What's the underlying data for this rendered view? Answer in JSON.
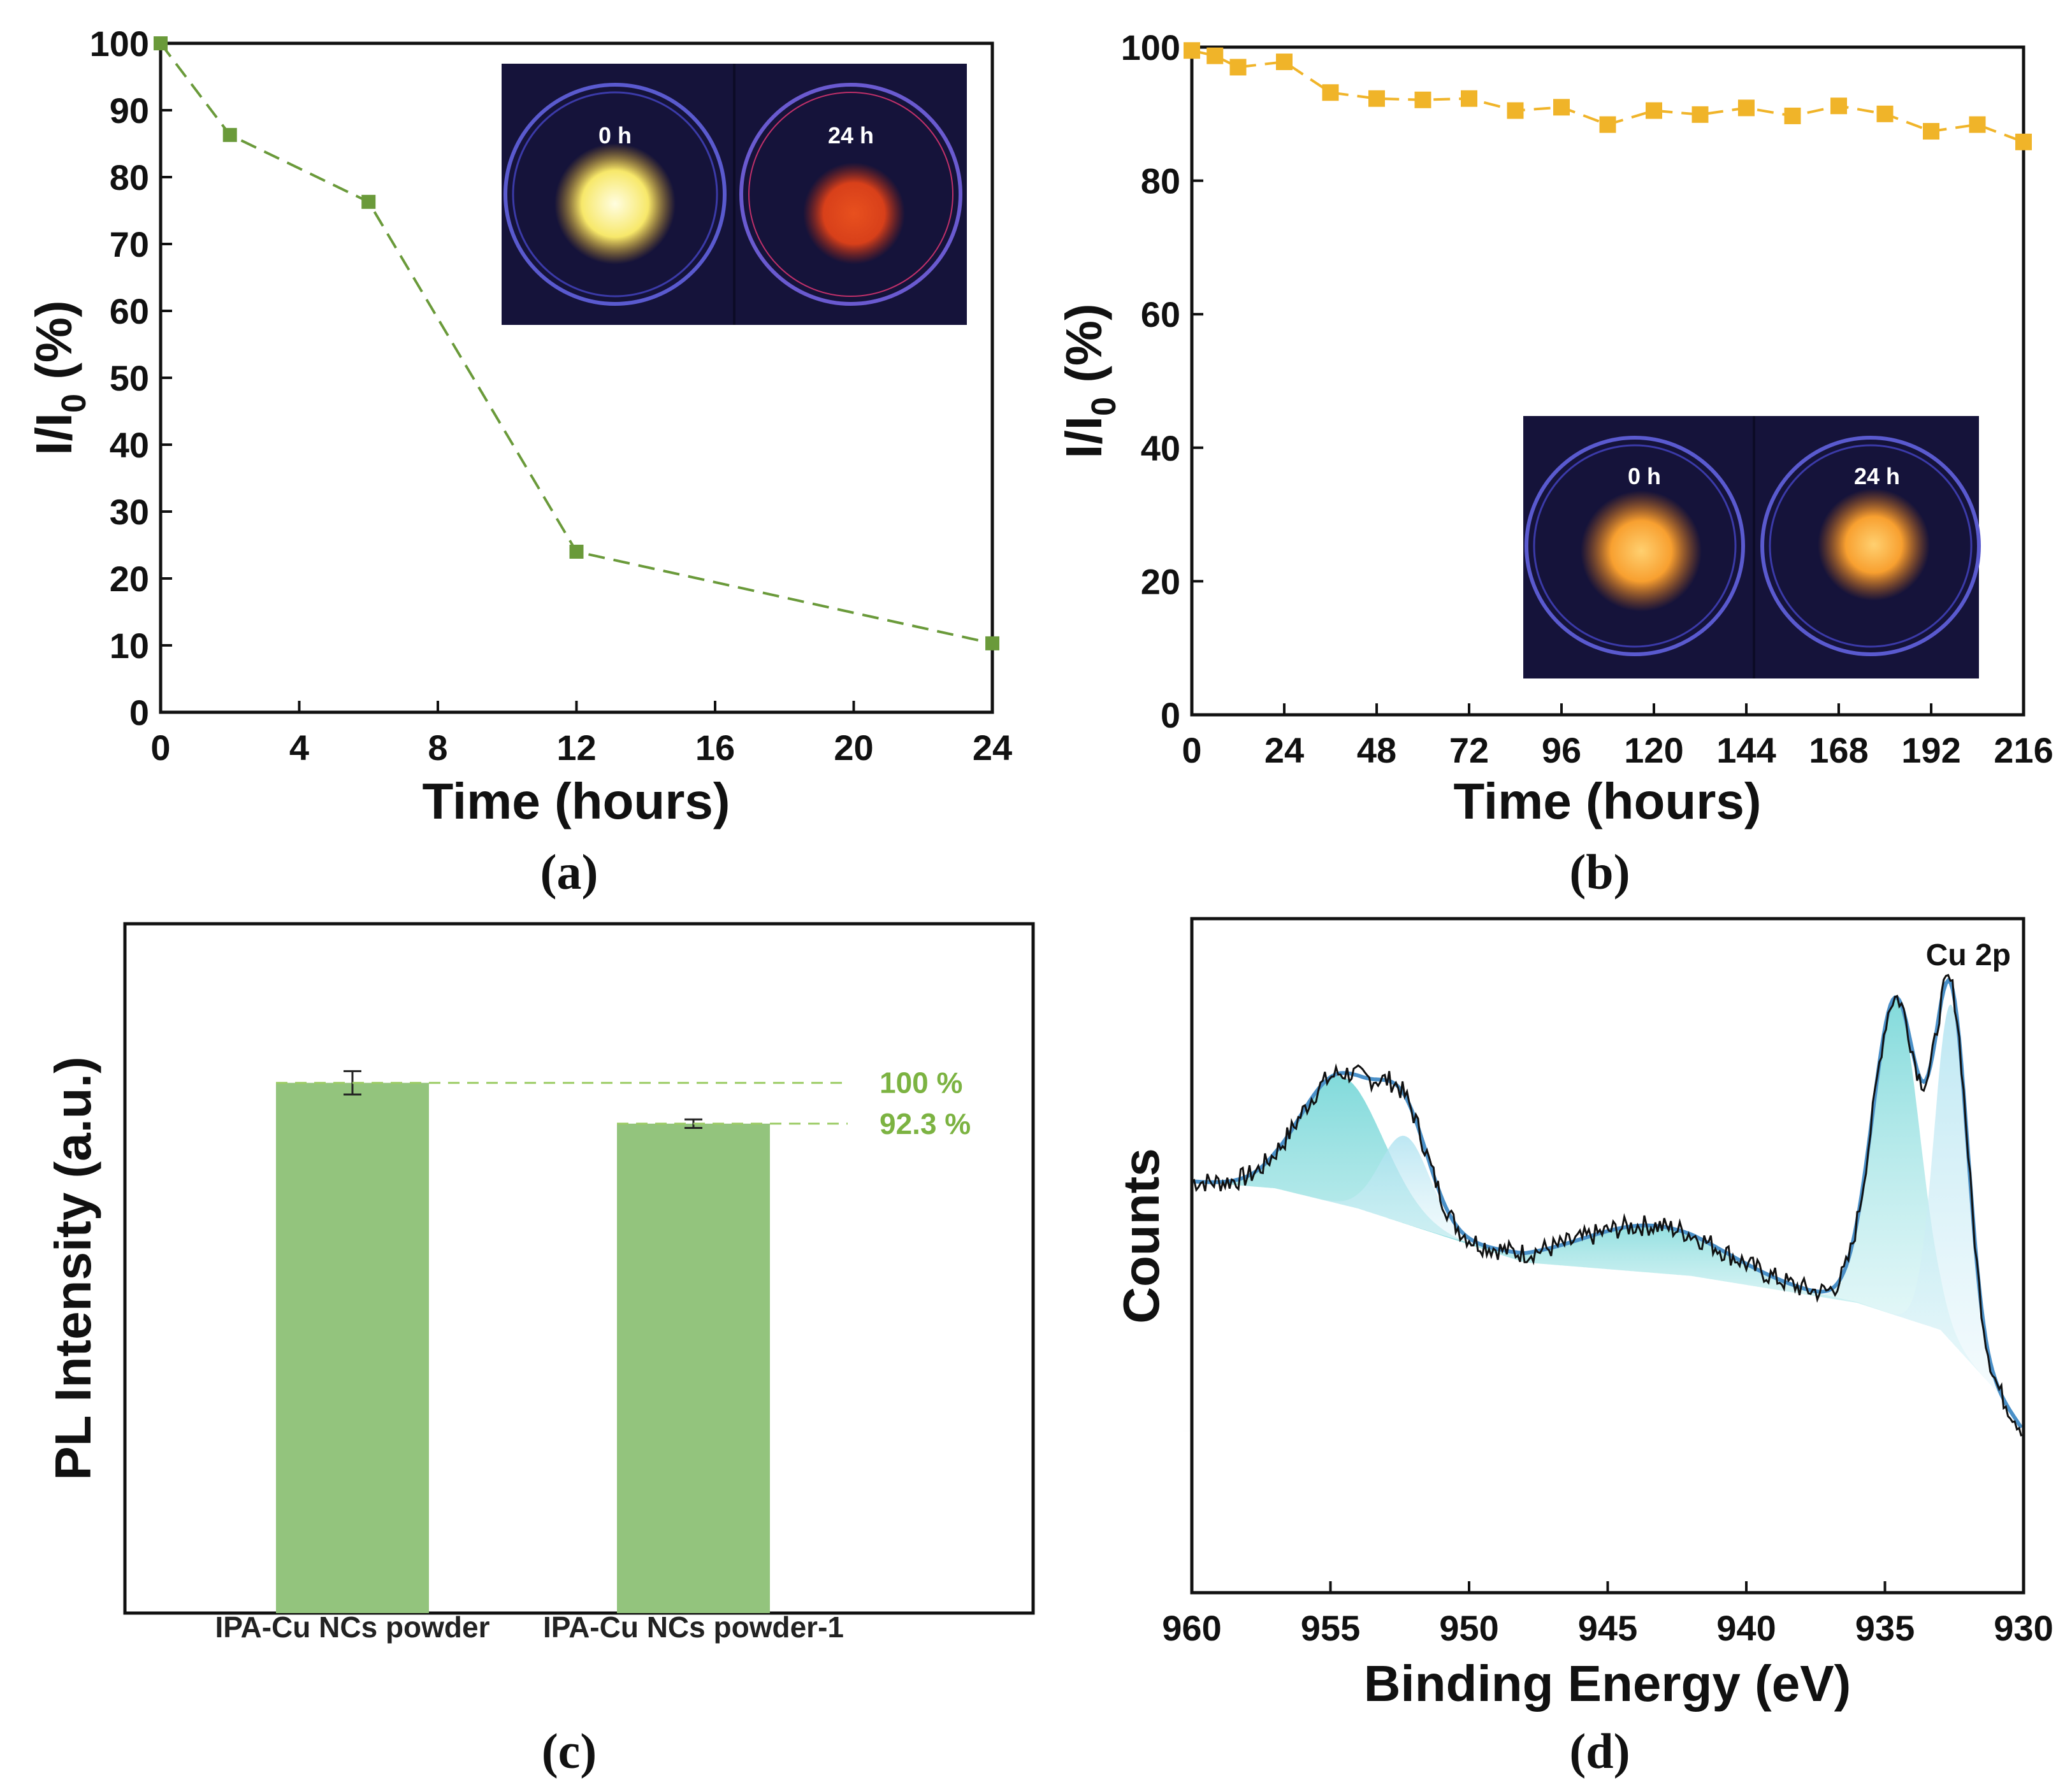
{
  "panels": [
    {
      "label": "(a)"
    },
    {
      "label": "(b)"
    },
    {
      "label": "(c)"
    },
    {
      "label": "(d)"
    }
  ],
  "colors": {
    "series_a": "#6a9a3a",
    "series_b": "#f0b429",
    "bar": "#93c47d",
    "pct": "#7cb342",
    "fit_line": "#4a90c8",
    "peak_fill": "#7fd8d8",
    "inset_bg": "#1a1840"
  },
  "chart_data": [
    {
      "type": "line",
      "panel": "(a)",
      "x": [
        0,
        2,
        6,
        12,
        24
      ],
      "y": [
        100,
        86.3,
        76.3,
        24.0,
        10.3
      ],
      "xlim": [
        0,
        24
      ],
      "ylim": [
        0,
        100
      ],
      "xticks": [
        "0",
        "4",
        "8",
        "12",
        "16",
        "20",
        "24"
      ],
      "yticks": [
        "0",
        "10",
        "20",
        "30",
        "40",
        "50",
        "60",
        "70",
        "80",
        "90",
        "100"
      ],
      "xlabel": "Time (hours)",
      "ylabel_main": "I/I",
      "ylabel_sub": "0",
      "ylabel_tail": " (%)",
      "inset_labels": [
        "0 h",
        "24 h"
      ]
    },
    {
      "type": "line",
      "panel": "(b)",
      "x": [
        0,
        6,
        12,
        24,
        36,
        48,
        60,
        72,
        84,
        96,
        108,
        120,
        132,
        144,
        156,
        168,
        180,
        192,
        204,
        216
      ],
      "y": [
        99.5,
        98.7,
        97.0,
        97.8,
        93.2,
        92.3,
        92.1,
        92.3,
        90.5,
        91.0,
        88.4,
        90.5,
        89.9,
        90.9,
        89.7,
        91.2,
        90.0,
        87.4,
        88.4,
        85.8
      ],
      "xlim": [
        0,
        216
      ],
      "ylim": [
        0,
        100
      ],
      "xticks": [
        "0",
        "24",
        "48",
        "72",
        "96",
        "120",
        "144",
        "168",
        "192",
        "216"
      ],
      "yticks": [
        "0",
        "20",
        "40",
        "60",
        "80",
        "100"
      ],
      "xlabel": "Time (hours)",
      "ylabel_main": "I/I",
      "ylabel_sub": "0",
      "ylabel_tail": " (%)",
      "inset_labels": [
        "0 h",
        "24 h"
      ]
    },
    {
      "type": "bar",
      "panel": "(c)",
      "categories": [
        "IPA-Cu NCs powder",
        "IPA-Cu NCs powder-1"
      ],
      "values": [
        100,
        92.3
      ],
      "errors": [
        2.2,
        0.8
      ],
      "annotations": [
        "100 %",
        "92.3 %"
      ],
      "ylabel": "PL Intensity (a.u.)",
      "ylim": [
        0,
        130
      ]
    },
    {
      "type": "line",
      "panel": "(d)",
      "title": "Cu 2p",
      "xlabel": "Binding Energy (eV)",
      "ylabel": "Counts",
      "xlim": [
        960,
        930
      ],
      "xticks": [
        "960",
        "955",
        "950",
        "945",
        "940",
        "935",
        "930"
      ],
      "background": {
        "x": [
          960,
          957,
          954,
          951,
          948,
          945,
          942,
          939,
          936,
          933,
          931,
          930
        ],
        "y": [
          61,
          60,
          57,
          53,
          49,
          48,
          47,
          45,
          43,
          39,
          30,
          24
        ]
      },
      "peaks": [
        {
          "center": 954.6,
          "height": 19,
          "width": 1.5
        },
        {
          "center": 952.3,
          "height": 13,
          "width": 0.9
        },
        {
          "center": 943.3,
          "height": 7,
          "width": 2.6
        },
        {
          "center": 934.6,
          "height": 47,
          "width": 0.85
        },
        {
          "center": 932.6,
          "height": 50,
          "width": 0.6
        }
      ]
    }
  ]
}
